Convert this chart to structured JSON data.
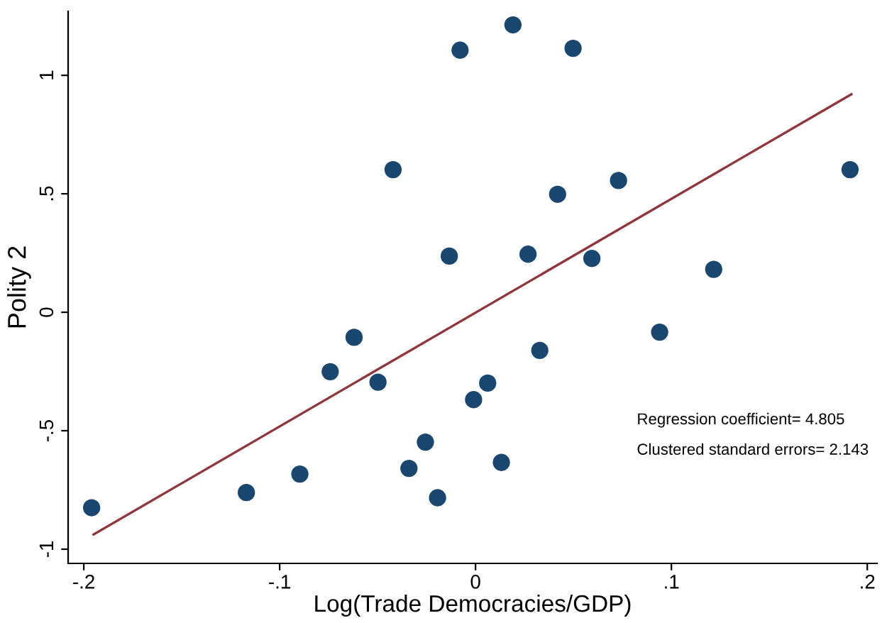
{
  "chart_data": {
    "type": "scatter",
    "xlabel": "Log(Trade Democracies/GDP)",
    "ylabel": "Polity 2",
    "xlim": [
      -0.208,
      0.205
    ],
    "ylim": [
      -1.06,
      1.27
    ],
    "xticks": [
      {
        "value": -0.2,
        "label": "-.2"
      },
      {
        "value": -0.1,
        "label": "-.1"
      },
      {
        "value": 0,
        "label": "0"
      },
      {
        "value": 0.1,
        "label": ".1"
      },
      {
        "value": 0.2,
        "label": ".2"
      }
    ],
    "yticks": [
      {
        "value": -1,
        "label": "-1"
      },
      {
        "value": -0.5,
        "label": "-.5"
      },
      {
        "value": 0,
        "label": "0"
      },
      {
        "value": 0.5,
        "label": ".5"
      },
      {
        "value": 1,
        "label": "1"
      }
    ],
    "grid": false,
    "legend": false,
    "marker": "circle",
    "series": [
      {
        "color": "#1a476f",
        "x": [
          -0.196,
          -0.117,
          -0.0897,
          -0.0742,
          -0.062,
          -0.0498,
          -0.0421,
          -0.034,
          -0.0256,
          -0.0194,
          -0.0134,
          -0.0079,
          0.0191,
          0.0498,
          -0.001,
          0.0062,
          0.0132,
          0.0268,
          0.0328,
          0.0419,
          0.0594,
          0.073,
          0.094,
          0.1216,
          0.1912
        ],
        "values": [
          -0.825,
          -0.761,
          -0.683,
          -0.251,
          -0.106,
          -0.295,
          0.602,
          -0.659,
          -0.548,
          -0.783,
          0.237,
          1.106,
          1.213,
          1.114,
          -0.369,
          -0.299,
          -0.634,
          0.245,
          -0.161,
          0.498,
          0.227,
          0.556,
          -0.084,
          0.181,
          0.602
        ]
      },
      {
        "type": "line",
        "color": "#90353b",
        "marker": "none",
        "x": [
          -0.195,
          0.1919
        ],
        "values": [
          -0.938,
          0.92
        ]
      }
    ],
    "annotations": [
      "Regression coefficient= 4.805",
      "Clustered standard errors= 2.143"
    ]
  }
}
